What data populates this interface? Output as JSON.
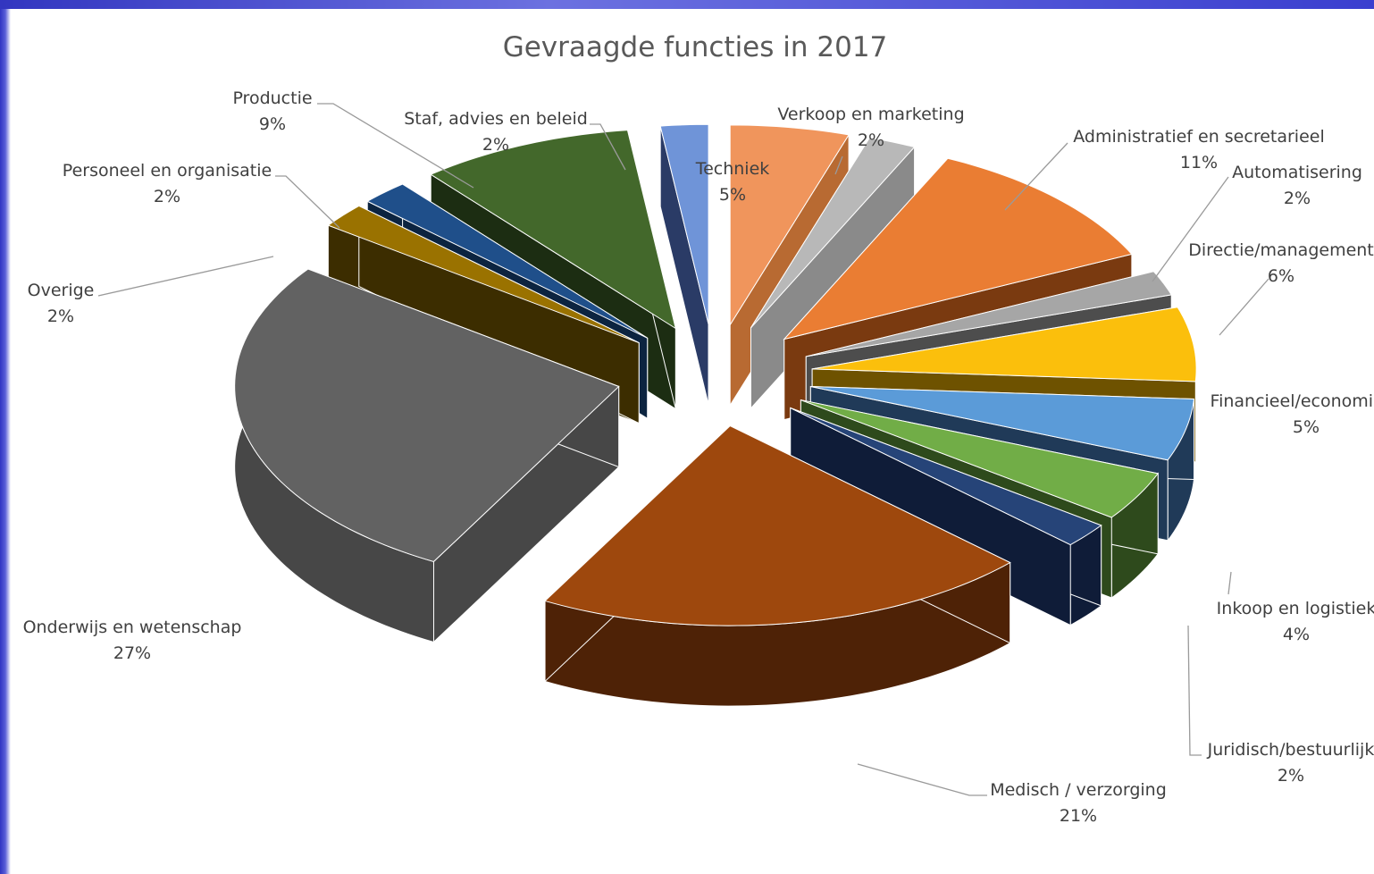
{
  "chart_data": {
    "type": "pie",
    "title": "Gevraagde functies in 2017",
    "slices": [
      {
        "label": "Techniek",
        "value": 5,
        "value_label": "5%",
        "color": "#f0955c",
        "side": "#b86a32"
      },
      {
        "label": "Verkoop en marketing",
        "value": 2,
        "value_label": "2%",
        "color": "#b8b8b8",
        "side": "#8a8a8a"
      },
      {
        "label": "Administratief en secretarieel",
        "value": 11,
        "value_label": "11%",
        "color": "#ea7d33",
        "side": "#7a3a10"
      },
      {
        "label": "Automatisering",
        "value": 2,
        "value_label": "2%",
        "color": "#a6a6a6",
        "side": "#4d4d4d"
      },
      {
        "label": "Directie/management",
        "value": 6,
        "value_label": "6%",
        "color": "#fbbf0c",
        "side": "#6e5200"
      },
      {
        "label": "Financieel/economisch",
        "value": 5,
        "value_label": "5%",
        "color": "#5b9bd8",
        "side": "#203a58"
      },
      {
        "label": "Inkoop en logistiek",
        "value": 4,
        "value_label": "4%",
        "color": "#71ad47",
        "side": "#2e4a1c"
      },
      {
        "label": "Juridisch/bestuurlijk",
        "value": 2,
        "value_label": "2%",
        "color": "#264478",
        "side": "#0f1c38"
      },
      {
        "label": "Medisch / verzorging",
        "value": 21,
        "value_label": "21%",
        "color": "#9e480d",
        "side": "#4e2206"
      },
      {
        "label": "Onderwijs en wetenschap",
        "value": 27,
        "value_label": "27%",
        "color": "#626262",
        "side": "#474747"
      },
      {
        "label": "Overige",
        "value": 2,
        "value_label": "2%",
        "color": "#9a7200",
        "side": "#3c2d00"
      },
      {
        "label": "Personeel en organisatie",
        "value": 2,
        "value_label": "2%",
        "color": "#1f4f8a",
        "side": "#0c2440"
      },
      {
        "label": "Productie",
        "value": 9,
        "value_label": "9%",
        "color": "#43682b",
        "side": "#1c2d12"
      },
      {
        "label": "Staf, advies en beleid",
        "value": 2,
        "value_label": "2%",
        "color": "#6f94d8",
        "side": "#2a3b66"
      }
    ]
  }
}
